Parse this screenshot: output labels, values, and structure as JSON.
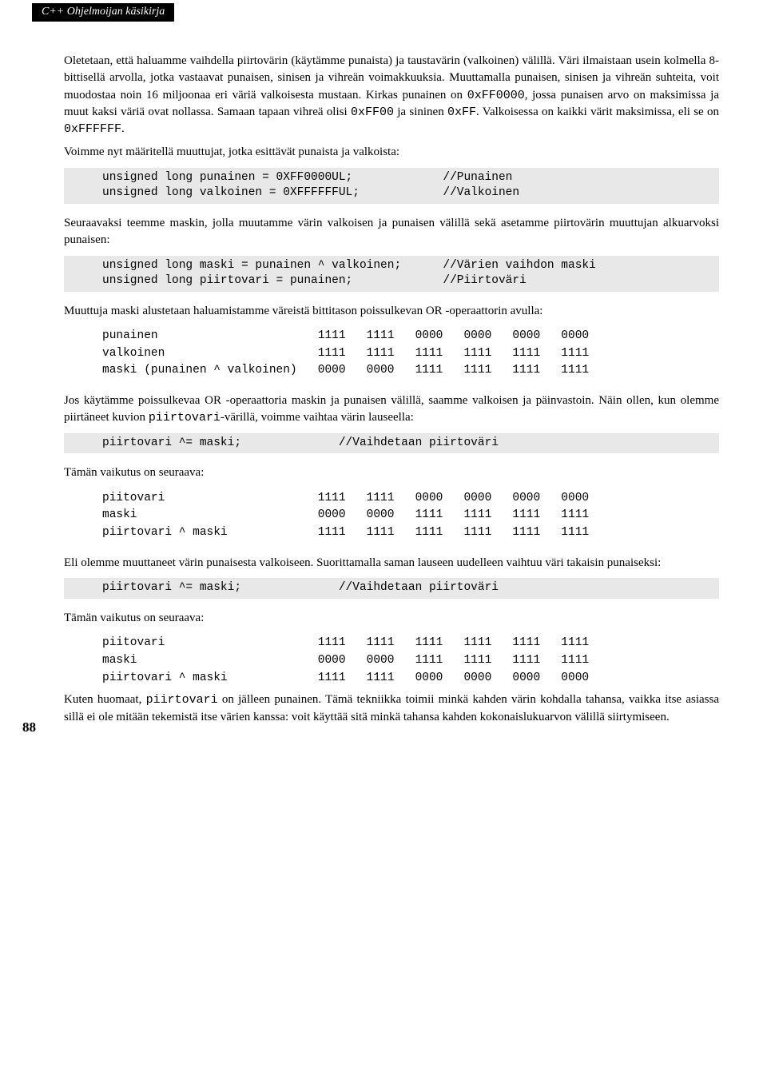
{
  "header": {
    "tab_text": "C++ Ohjelmoijan käsikirja"
  },
  "page_number": "88",
  "paragraphs": {
    "p1": "Oletetaan, että haluamme vaihdella piirtovärin (käytämme punaista) ja taustavärin (valkoinen) välillä. Väri ilmaistaan usein kolmella 8-bittisellä arvolla, jotka vastaavat punaisen, sinisen ja vihreän voimakkuuksia. Muuttamalla punaisen, sinisen ja vihreän suhteita, voit muodostaa noin 16 miljoonaa eri väriä valkoisesta mustaan. Kirkas punainen on ",
    "p1b": ", jossa punaisen arvo on maksimissa ja muut kaksi väriä ovat nollassa. Samaan tapaan vihreä olisi ",
    "p1c": " ja sininen ",
    "p1d": ". Valkoisessa on kaikki värit maksimissa, eli se on ",
    "p1e": ".",
    "code1a": "0xFF0000",
    "code1b": "0xFF00",
    "code1c": "0xFF",
    "code1d": "0xFFFFFF",
    "p2": "Voimme nyt määritellä muuttujat, jotka esittävät punaista ja valkoista:",
    "cb1": "unsigned long punainen = 0XFF0000UL;             //Punainen\nunsigned long valkoinen = 0XFFFFFFUL;            //Valkoinen",
    "p3": "Seuraavaksi teemme maskin, jolla muutamme värin valkoisen ja punaisen välillä sekä asetamme piirtovärin muuttujan alkuarvoksi punaisen:",
    "cb2": "unsigned long maski = punainen ^ valkoinen;      //Värien vaihdon maski\nunsigned long piirtovari = punainen;             //Piirtoväri",
    "p4": "Muuttuja maski alustetaan haluamistamme väreistä bittitason poissulkevan OR -operaattorin avulla:",
    "cp1": "punainen                       1111   1111   0000   0000   0000   0000\nvalkoinen                      1111   1111   1111   1111   1111   1111\nmaski (punainen ^ valkoinen)   0000   0000   1111   1111   1111   1111",
    "p5a": "Jos käytämme poissulkevaa OR -operaattoria maskin ja punaisen välillä, saamme valkoisen ja päinvastoin. Näin ollen, kun olemme piirtäneet kuvion ",
    "p5code": "piirtovari",
    "p5b": "-värillä, voimme vaihtaa värin lauseella:",
    "cb3": "piirtovari ^= maski;              //Vaihdetaan piirtoväri",
    "p6": "Tämän vaikutus on seuraava:",
    "cp2": "piitovari                      1111   1111   0000   0000   0000   0000\nmaski                          0000   0000   1111   1111   1111   1111\npiirtovari ^ maski             1111   1111   1111   1111   1111   1111",
    "p7": "Eli olemme muuttaneet värin punaisesta valkoiseen. Suorittamalla saman lauseen uudelleen vaihtuu väri takaisin punaiseksi:",
    "cb4": "piirtovari ^= maski;              //Vaihdetaan piirtoväri",
    "p8": "Tämän vaikutus on seuraava:",
    "cp3": "piitovari                      1111   1111   1111   1111   1111   1111\nmaski                          0000   0000   1111   1111   1111   1111\npiirtovari ^ maski             1111   1111   0000   0000   0000   0000",
    "p9a": "Kuten huomaat, ",
    "p9code": "piirtovari",
    "p9b": " on jälleen punainen. Tämä tekniikka toimii minkä kahden värin kohdalla tahansa, vaikka itse asiassa sillä ei ole mitään tekemistä itse värien kanssa: voit käyttää sitä minkä tahansa kahden kokonaislukuarvon välillä siirtymiseen."
  }
}
